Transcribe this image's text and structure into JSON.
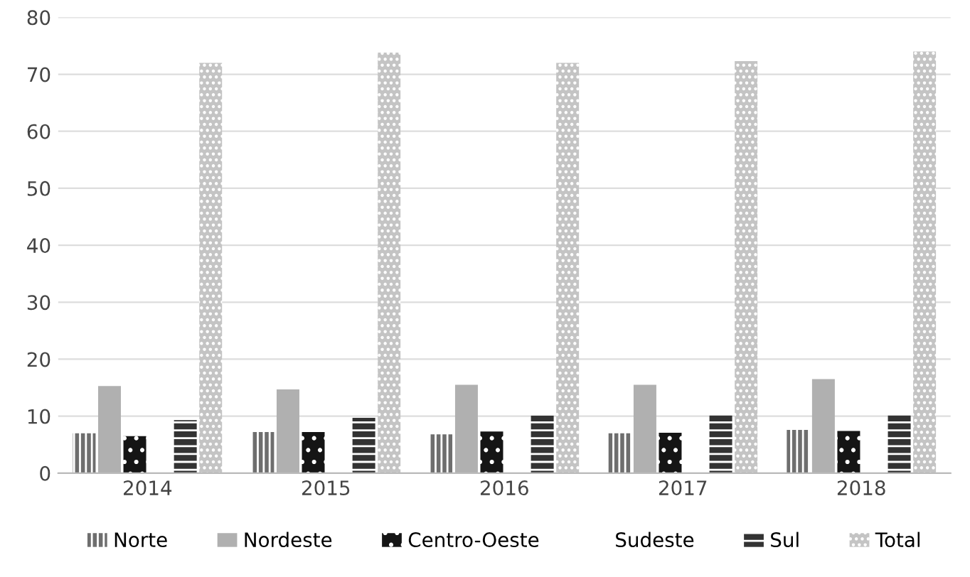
{
  "chart_data": {
    "type": "bar",
    "categories": [
      "2014",
      "2015",
      "2016",
      "2017",
      "2018"
    ],
    "series": [
      {
        "name": "Norte",
        "color": "#6e6e6e",
        "values": [
          7.0,
          7.2,
          6.8,
          7.0,
          7.6
        ]
      },
      {
        "name": "Nordeste",
        "color": "#b0b0b0",
        "values": [
          15.3,
          14.7,
          15.5,
          15.5,
          16.5
        ]
      },
      {
        "name": "Centro-Oeste",
        "color": "#151515",
        "values": [
          6.5,
          7.2,
          7.3,
          7.1,
          7.4
        ]
      },
      {
        "name": "Sudeste",
        "values": [
          null,
          null,
          null,
          null,
          null
        ]
      },
      {
        "name": "Sul",
        "color": "#333333",
        "values": [
          9.3,
          9.7,
          10.1,
          10.2,
          10.2
        ]
      },
      {
        "name": "Total",
        "color": "#c4c4c4",
        "values": [
          72,
          73.8,
          72,
          72.3,
          74
        ]
      }
    ],
    "ylim": [
      0,
      80
    ],
    "yticks": [
      0,
      10,
      20,
      30,
      40,
      50,
      60,
      70,
      80
    ],
    "grid": "y",
    "legend": "bottom"
  }
}
